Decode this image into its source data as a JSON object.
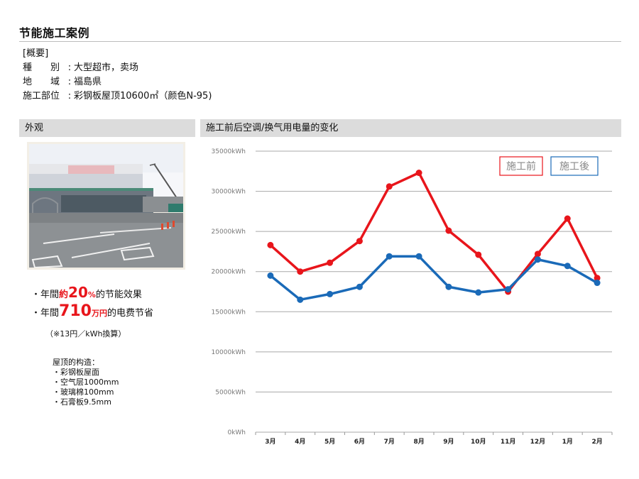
{
  "header": {
    "title": "节能施工案例"
  },
  "summary": {
    "heading": "[概要]",
    "rows": [
      {
        "label": "種　　別",
        "value": "大型超市，卖场"
      },
      {
        "label": "地　　域",
        "value": "福島県"
      },
      {
        "label": "施工部位",
        "value": "彩钢板屋顶10600㎡（颜色N-95)"
      }
    ]
  },
  "left_panel": {
    "heading": "外观",
    "effect1": {
      "prefix": "・年間 ",
      "unit_prefix": "約",
      "value": "20",
      "unit": "%",
      "suffix": " 的节能效果"
    },
    "effect2": {
      "prefix": "・年間 ",
      "value": "710",
      "unit": "万円",
      "suffix": " 的电费节省"
    },
    "note": "（※13円／kWh換算）",
    "roof": {
      "title": "屋顶的构造：",
      "items": [
        "・彩钢板屋面",
        "・空气层1000mm",
        "・玻璃棉100mm",
        "・石膏板9.5mm"
      ]
    }
  },
  "right_panel": {
    "heading": "施工前后空调/换气用电量的变化"
  },
  "chart_data": {
    "type": "line",
    "categories": [
      "3月",
      "4月",
      "5月",
      "6月",
      "7月",
      "8月",
      "9月",
      "10月",
      "11月",
      "12月",
      "1月",
      "2月"
    ],
    "yticks": [
      "0kWh",
      "5000kWh",
      "10000kWh",
      "15000kWh",
      "20000kWh",
      "25000kWh",
      "30000kWh",
      "35000kWh"
    ],
    "ylim": [
      0,
      35000
    ],
    "grid": true,
    "legend_position": "top-right",
    "series": [
      {
        "name": "施工前",
        "color": "#e8151b",
        "values": [
          23300,
          20000,
          21100,
          23800,
          30600,
          32300,
          25100,
          22100,
          17500,
          22200,
          26600,
          19200
        ]
      },
      {
        "name": "施工後",
        "color": "#1a6ab8",
        "values": [
          19500,
          16500,
          17200,
          18100,
          21900,
          21900,
          18100,
          17400,
          17800,
          21500,
          20700,
          18600
        ]
      }
    ]
  }
}
